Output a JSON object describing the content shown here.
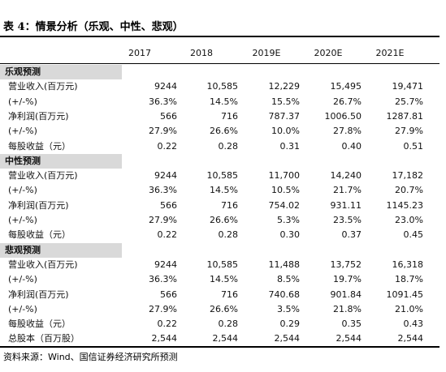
{
  "title": "表 4：情景分析（乐观、中性、悲观）",
  "table": {
    "columns": [
      "2017",
      "2018",
      "2019E",
      "2020E",
      "2021E"
    ],
    "sections": [
      {
        "name": "乐观预测",
        "rows": [
          {
            "label": "营业收入(百万元)",
            "values": [
              "9244",
              "10,585",
              "12,229",
              "15,495",
              "19,471"
            ]
          },
          {
            "label": "(+/-%)",
            "values": [
              "36.3%",
              "14.5%",
              "15.5%",
              "26.7%",
              "25.7%"
            ]
          },
          {
            "label": "净利润(百万元)",
            "values": [
              "566",
              "716",
              "787.37",
              "1006.50",
              "1287.81"
            ]
          },
          {
            "label": "(+/-%)",
            "values": [
              "27.9%",
              "26.6%",
              "10.0%",
              "27.8%",
              "27.9%"
            ]
          },
          {
            "label": "每股收益（元）",
            "values": [
              "0.22",
              "0.28",
              "0.31",
              "0.40",
              "0.51"
            ]
          }
        ]
      },
      {
        "name": "中性预测",
        "rows": [
          {
            "label": "营业收入(百万元)",
            "values": [
              "9244",
              "10,585",
              "11,700",
              "14,240",
              "17,182"
            ]
          },
          {
            "label": "(+/-%)",
            "values": [
              "36.3%",
              "14.5%",
              "10.5%",
              "21.7%",
              "20.7%"
            ]
          },
          {
            "label": "净利润(百万元)",
            "values": [
              "566",
              "716",
              "754.02",
              "931.11",
              "1145.23"
            ]
          },
          {
            "label": "(+/-%)",
            "values": [
              "27.9%",
              "26.6%",
              "5.3%",
              "23.5%",
              "23.0%"
            ]
          },
          {
            "label": "每股收益（元）",
            "values": [
              "0.22",
              "0.28",
              "0.30",
              "0.37",
              "0.45"
            ]
          }
        ]
      },
      {
        "name": "悲观预测",
        "rows": [
          {
            "label": "营业收入(百万元)",
            "values": [
              "9244",
              "10,585",
              "11,488",
              "13,752",
              "16,318"
            ]
          },
          {
            "label": "(+/-%)",
            "values": [
              "36.3%",
              "14.5%",
              "8.5%",
              "19.7%",
              "18.7%"
            ]
          },
          {
            "label": "净利润(百万元)",
            "values": [
              "566",
              "716",
              "740.68",
              "901.84",
              "1091.45"
            ]
          },
          {
            "label": "(+/-%)",
            "values": [
              "27.9%",
              "26.6%",
              "3.5%",
              "21.8%",
              "21.0%"
            ]
          },
          {
            "label": "每股收益（元）",
            "values": [
              "0.22",
              "0.28",
              "0.29",
              "0.35",
              "0.43"
            ]
          },
          {
            "label": "总股本（百万股）",
            "values": [
              "2,544",
              "2,544",
              "2,544",
              "2,544",
              "2,544"
            ]
          }
        ]
      }
    ]
  },
  "source": "资料来源：Wind、国信证券经济研究所预测"
}
